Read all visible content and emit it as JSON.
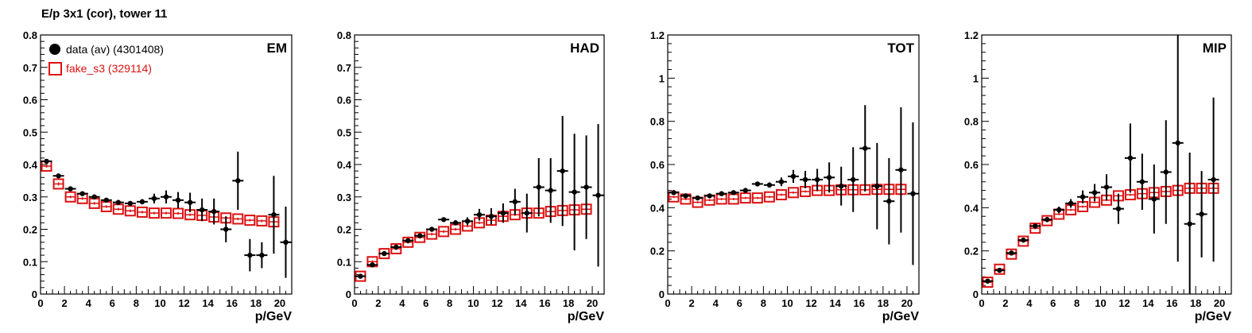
{
  "page_title": "E/p 3x1 (cor), tower 11",
  "legend": {
    "data_label": "data (av) (4301408)",
    "fake_label": "fake_s3 (329114)"
  },
  "colors": {
    "data": "#000000",
    "fake": "#dd1111"
  },
  "chart_data": [
    {
      "type": "scatter",
      "title": "EM",
      "xlabel": "p/GeV",
      "xlim": [
        0,
        21
      ],
      "ylim": [
        0,
        0.8
      ],
      "xticks": [
        0,
        2,
        4,
        6,
        8,
        10,
        12,
        14,
        16,
        18,
        20
      ],
      "yticks": [
        0,
        0.1,
        0.2,
        0.3,
        0.4,
        0.5,
        0.6,
        0.7,
        0.8
      ],
      "ytick_labels": [
        "0",
        "0.1",
        "0.2",
        "0.3",
        "0.4",
        "0.5",
        "0.6",
        "0.7",
        "0.8"
      ],
      "series": [
        {
          "name": "data (av) (4301408)",
          "marker": "filled-circle",
          "points": [
            [
              0.5,
              0.41,
              0.005
            ],
            [
              1.5,
              0.365,
              0.005
            ],
            [
              2.5,
              0.325,
              0.004
            ],
            [
              3.5,
              0.31,
              0.004
            ],
            [
              4.5,
              0.3,
              0.004
            ],
            [
              5.5,
              0.29,
              0.004
            ],
            [
              6.5,
              0.283,
              0.005
            ],
            [
              7.5,
              0.28,
              0.006
            ],
            [
              8.5,
              0.285,
              0.008
            ],
            [
              9.5,
              0.295,
              0.015
            ],
            [
              10.5,
              0.3,
              0.02
            ],
            [
              11.5,
              0.29,
              0.025
            ],
            [
              12.5,
              0.283,
              0.03
            ],
            [
              13.5,
              0.26,
              0.035
            ],
            [
              14.5,
              0.255,
              0.04
            ],
            [
              15.5,
              0.2,
              0.04
            ],
            [
              16.5,
              0.35,
              0.09
            ],
            [
              17.5,
              0.12,
              0.05
            ],
            [
              18.5,
              0.12,
              0.04
            ],
            [
              19.5,
              0.245,
              0.12
            ],
            [
              20.5,
              0.16,
              0.11
            ]
          ]
        },
        {
          "name": "fake_s3 (329114)",
          "marker": "open-square",
          "points": [
            [
              0.5,
              0.395,
              0.005
            ],
            [
              1.5,
              0.34,
              0.005
            ],
            [
              2.5,
              0.3,
              0.004
            ],
            [
              3.5,
              0.295,
              0.004
            ],
            [
              4.5,
              0.28,
              0.004
            ],
            [
              5.5,
              0.27,
              0.004
            ],
            [
              6.5,
              0.262,
              0.004
            ],
            [
              7.5,
              0.257,
              0.004
            ],
            [
              8.5,
              0.253,
              0.004
            ],
            [
              9.5,
              0.25,
              0.004
            ],
            [
              10.5,
              0.25,
              0.004
            ],
            [
              11.5,
              0.249,
              0.004
            ],
            [
              12.5,
              0.245,
              0.004
            ],
            [
              13.5,
              0.243,
              0.004
            ],
            [
              14.5,
              0.238,
              0.004
            ],
            [
              15.5,
              0.235,
              0.004
            ],
            [
              16.5,
              0.232,
              0.004
            ],
            [
              17.5,
              0.228,
              0.004
            ],
            [
              18.5,
              0.226,
              0.004
            ],
            [
              19.5,
              0.223,
              0.004
            ]
          ]
        }
      ]
    },
    {
      "type": "scatter",
      "title": "HAD",
      "xlabel": "p/GeV",
      "xlim": [
        0,
        21
      ],
      "ylim": [
        0,
        0.8
      ],
      "xticks": [
        0,
        2,
        4,
        6,
        8,
        10,
        12,
        14,
        16,
        18,
        20
      ],
      "yticks": [
        0,
        0.1,
        0.2,
        0.3,
        0.4,
        0.5,
        0.6,
        0.7,
        0.8
      ],
      "ytick_labels": [
        "0",
        "0.1",
        "0.2",
        "0.3",
        "0.4",
        "0.5",
        "0.6",
        "0.7",
        "0.8"
      ],
      "series": [
        {
          "name": "data (av) (4301408)",
          "marker": "filled-circle",
          "points": [
            [
              0.5,
              0.055,
              0.004
            ],
            [
              1.5,
              0.09,
              0.004
            ],
            [
              2.5,
              0.125,
              0.004
            ],
            [
              3.5,
              0.145,
              0.004
            ],
            [
              4.5,
              0.165,
              0.004
            ],
            [
              5.5,
              0.18,
              0.004
            ],
            [
              6.5,
              0.2,
              0.005
            ],
            [
              7.5,
              0.23,
              0.006
            ],
            [
              8.5,
              0.22,
              0.008
            ],
            [
              9.5,
              0.225,
              0.012
            ],
            [
              10.5,
              0.245,
              0.018
            ],
            [
              11.5,
              0.24,
              0.025
            ],
            [
              12.5,
              0.25,
              0.03
            ],
            [
              13.5,
              0.285,
              0.04
            ],
            [
              14.5,
              0.25,
              0.06
            ],
            [
              15.5,
              0.33,
              0.09
            ],
            [
              16.5,
              0.32,
              0.1
            ],
            [
              17.5,
              0.38,
              0.17
            ],
            [
              18.5,
              0.315,
              0.18
            ],
            [
              19.5,
              0.33,
              0.16
            ],
            [
              20.5,
              0.305,
              0.22
            ]
          ]
        },
        {
          "name": "fake_s3 (329114)",
          "marker": "open-square",
          "points": [
            [
              0.5,
              0.055,
              0.004
            ],
            [
              1.5,
              0.1,
              0.004
            ],
            [
              2.5,
              0.125,
              0.004
            ],
            [
              3.5,
              0.14,
              0.004
            ],
            [
              4.5,
              0.16,
              0.004
            ],
            [
              5.5,
              0.175,
              0.004
            ],
            [
              6.5,
              0.185,
              0.004
            ],
            [
              7.5,
              0.193,
              0.004
            ],
            [
              8.5,
              0.2,
              0.004
            ],
            [
              9.5,
              0.21,
              0.004
            ],
            [
              10.5,
              0.22,
              0.004
            ],
            [
              11.5,
              0.228,
              0.004
            ],
            [
              12.5,
              0.24,
              0.004
            ],
            [
              13.5,
              0.245,
              0.004
            ],
            [
              14.5,
              0.25,
              0.004
            ],
            [
              15.5,
              0.25,
              0.004
            ],
            [
              16.5,
              0.255,
              0.004
            ],
            [
              17.5,
              0.258,
              0.004
            ],
            [
              18.5,
              0.26,
              0.004
            ],
            [
              19.5,
              0.262,
              0.004
            ]
          ]
        }
      ]
    },
    {
      "type": "scatter",
      "title": "TOT",
      "xlabel": "p/GeV",
      "xlim": [
        0,
        21
      ],
      "ylim": [
        0,
        1.2
      ],
      "xticks": [
        0,
        2,
        4,
        6,
        8,
        10,
        12,
        14,
        16,
        18,
        20
      ],
      "yticks": [
        0,
        0.2,
        0.4,
        0.6,
        0.8,
        1.0,
        1.2
      ],
      "ytick_labels": [
        "0",
        "0.2",
        "0.4",
        "0.6",
        "0.8",
        "1",
        "1.2"
      ],
      "series": [
        {
          "name": "data (av) (4301408)",
          "marker": "filled-circle",
          "points": [
            [
              0.5,
              0.47,
              0.005
            ],
            [
              1.5,
              0.455,
              0.005
            ],
            [
              2.5,
              0.445,
              0.005
            ],
            [
              3.5,
              0.455,
              0.005
            ],
            [
              4.5,
              0.465,
              0.005
            ],
            [
              5.5,
              0.47,
              0.005
            ],
            [
              6.5,
              0.48,
              0.006
            ],
            [
              7.5,
              0.51,
              0.008
            ],
            [
              8.5,
              0.505,
              0.012
            ],
            [
              9.5,
              0.52,
              0.02
            ],
            [
              10.5,
              0.545,
              0.03
            ],
            [
              11.5,
              0.53,
              0.04
            ],
            [
              12.5,
              0.53,
              0.05
            ],
            [
              13.5,
              0.54,
              0.07
            ],
            [
              14.5,
              0.5,
              0.09
            ],
            [
              15.5,
              0.53,
              0.15
            ],
            [
              16.5,
              0.675,
              0.2
            ],
            [
              17.5,
              0.5,
              0.2
            ],
            [
              18.5,
              0.43,
              0.2
            ],
            [
              19.5,
              0.575,
              0.29
            ],
            [
              20.5,
              0.465,
              0.33
            ]
          ]
        },
        {
          "name": "fake_s3 (329114)",
          "marker": "open-square",
          "points": [
            [
              0.5,
              0.45,
              0.005
            ],
            [
              1.5,
              0.44,
              0.005
            ],
            [
              2.5,
              0.425,
              0.005
            ],
            [
              3.5,
              0.435,
              0.005
            ],
            [
              4.5,
              0.44,
              0.005
            ],
            [
              5.5,
              0.44,
              0.005
            ],
            [
              6.5,
              0.445,
              0.005
            ],
            [
              7.5,
              0.445,
              0.005
            ],
            [
              8.5,
              0.45,
              0.005
            ],
            [
              9.5,
              0.46,
              0.005
            ],
            [
              10.5,
              0.47,
              0.005
            ],
            [
              11.5,
              0.475,
              0.005
            ],
            [
              12.5,
              0.48,
              0.005
            ],
            [
              13.5,
              0.48,
              0.005
            ],
            [
              14.5,
              0.483,
              0.005
            ],
            [
              15.5,
              0.483,
              0.005
            ],
            [
              16.5,
              0.483,
              0.005
            ],
            [
              17.5,
              0.485,
              0.005
            ],
            [
              18.5,
              0.485,
              0.005
            ],
            [
              19.5,
              0.485,
              0.005
            ]
          ]
        }
      ]
    },
    {
      "type": "scatter",
      "title": "MIP",
      "xlabel": "p/GeV",
      "xlim": [
        0,
        21
      ],
      "ylim": [
        0,
        1.2
      ],
      "xticks": [
        0,
        2,
        4,
        6,
        8,
        10,
        12,
        14,
        16,
        18,
        20
      ],
      "yticks": [
        0,
        0.2,
        0.4,
        0.6,
        0.8,
        1.0,
        1.2
      ],
      "ytick_labels": [
        "0",
        "0.2",
        "0.4",
        "0.6",
        "0.8",
        "1",
        "1.2"
      ],
      "series": [
        {
          "name": "data (av) (4301408)",
          "marker": "filled-circle",
          "points": [
            [
              0.5,
              0.06,
              0.005
            ],
            [
              1.5,
              0.11,
              0.005
            ],
            [
              2.5,
              0.19,
              0.006
            ],
            [
              3.5,
              0.25,
              0.007
            ],
            [
              4.5,
              0.315,
              0.01
            ],
            [
              5.5,
              0.345,
              0.012
            ],
            [
              6.5,
              0.39,
              0.015
            ],
            [
              7.5,
              0.42,
              0.02
            ],
            [
              8.5,
              0.45,
              0.03
            ],
            [
              9.5,
              0.47,
              0.04
            ],
            [
              10.5,
              0.495,
              0.06
            ],
            [
              11.5,
              0.395,
              0.07
            ],
            [
              12.5,
              0.63,
              0.16
            ],
            [
              13.5,
              0.52,
              0.13
            ],
            [
              14.5,
              0.44,
              0.16
            ],
            [
              15.5,
              0.565,
              0.24
            ],
            [
              16.5,
              0.7,
              0.55
            ],
            [
              17.5,
              0.325,
              0.33
            ],
            [
              18.5,
              0.37,
              0.2
            ],
            [
              19.5,
              0.53,
              0.38
            ]
          ]
        },
        {
          "name": "fake_s3 (329114)",
          "marker": "open-square",
          "points": [
            [
              0.5,
              0.055,
              0.005
            ],
            [
              1.5,
              0.115,
              0.005
            ],
            [
              2.5,
              0.185,
              0.005
            ],
            [
              3.5,
              0.245,
              0.005
            ],
            [
              4.5,
              0.305,
              0.005
            ],
            [
              5.5,
              0.34,
              0.005
            ],
            [
              6.5,
              0.37,
              0.005
            ],
            [
              7.5,
              0.39,
              0.005
            ],
            [
              8.5,
              0.405,
              0.005
            ],
            [
              9.5,
              0.425,
              0.005
            ],
            [
              10.5,
              0.435,
              0.005
            ],
            [
              11.5,
              0.455,
              0.005
            ],
            [
              12.5,
              0.46,
              0.005
            ],
            [
              13.5,
              0.465,
              0.005
            ],
            [
              14.5,
              0.47,
              0.005
            ],
            [
              15.5,
              0.475,
              0.005
            ],
            [
              16.5,
              0.48,
              0.005
            ],
            [
              17.5,
              0.49,
              0.005
            ],
            [
              18.5,
              0.49,
              0.005
            ],
            [
              19.5,
              0.49,
              0.005
            ]
          ]
        }
      ]
    }
  ]
}
